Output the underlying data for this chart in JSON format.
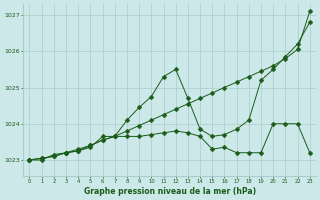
{
  "title": "Graphe pression niveau de la mer (hPa)",
  "bg_color": "#cce8e8",
  "grid_color": "#aacccc",
  "line_color": "#1a5c1a",
  "xlim": [
    -0.5,
    23.5
  ],
  "ylim": [
    1022.55,
    1027.3
  ],
  "yticks": [
    1023,
    1024,
    1025,
    1026,
    1027
  ],
  "xticks": [
    0,
    1,
    2,
    3,
    4,
    5,
    6,
    7,
    8,
    9,
    10,
    11,
    12,
    13,
    14,
    15,
    16,
    17,
    18,
    19,
    20,
    21,
    22,
    23
  ],
  "series": [
    {
      "x": [
        0,
        1,
        2,
        3,
        4,
        5,
        6,
        7,
        8,
        9,
        10,
        11,
        12,
        13,
        14,
        15,
        16,
        17,
        18,
        19,
        20,
        21,
        22,
        23
      ],
      "y": [
        1023.0,
        1023.05,
        1023.1,
        1023.2,
        1023.3,
        1023.4,
        1023.55,
        1023.65,
        1023.8,
        1023.95,
        1024.1,
        1024.25,
        1024.4,
        1024.55,
        1024.7,
        1024.85,
        1025.0,
        1025.15,
        1025.3,
        1025.45,
        1025.6,
        1025.8,
        1026.05,
        1027.1
      ],
      "marker": "D",
      "markersize": 2.5
    },
    {
      "x": [
        0,
        1,
        2,
        3,
        4,
        5,
        6,
        7,
        8,
        9,
        10,
        11,
        12,
        13,
        14,
        15,
        16,
        17,
        18,
        19,
        20,
        21,
        22,
        23
      ],
      "y": [
        1023.0,
        1023.0,
        1023.15,
        1023.2,
        1023.25,
        1023.4,
        1023.55,
        1023.65,
        1024.1,
        1024.45,
        1024.75,
        1025.3,
        1025.5,
        1024.7,
        1023.85,
        1023.65,
        1023.7,
        1023.85,
        1024.1,
        1025.2,
        1025.5,
        1025.85,
        1026.2,
        1026.8
      ],
      "marker": "D",
      "markersize": 2.5
    },
    {
      "x": [
        0,
        1,
        2,
        3,
        4,
        5,
        6,
        7,
        8,
        9,
        10,
        11,
        12,
        13,
        14,
        15,
        16,
        17,
        18,
        19,
        20,
        21,
        22,
        23
      ],
      "y": [
        1023.0,
        1023.05,
        1023.1,
        1023.2,
        1023.25,
        1023.35,
        1023.65,
        1023.65,
        1023.65,
        1023.65,
        1023.7,
        1023.75,
        1023.8,
        1023.75,
        1023.65,
        1023.3,
        1023.35,
        1023.2,
        1023.2,
        1023.2,
        1024.0,
        1024.0,
        1024.0,
        1023.2
      ],
      "marker": "D",
      "markersize": 2.5
    }
  ]
}
